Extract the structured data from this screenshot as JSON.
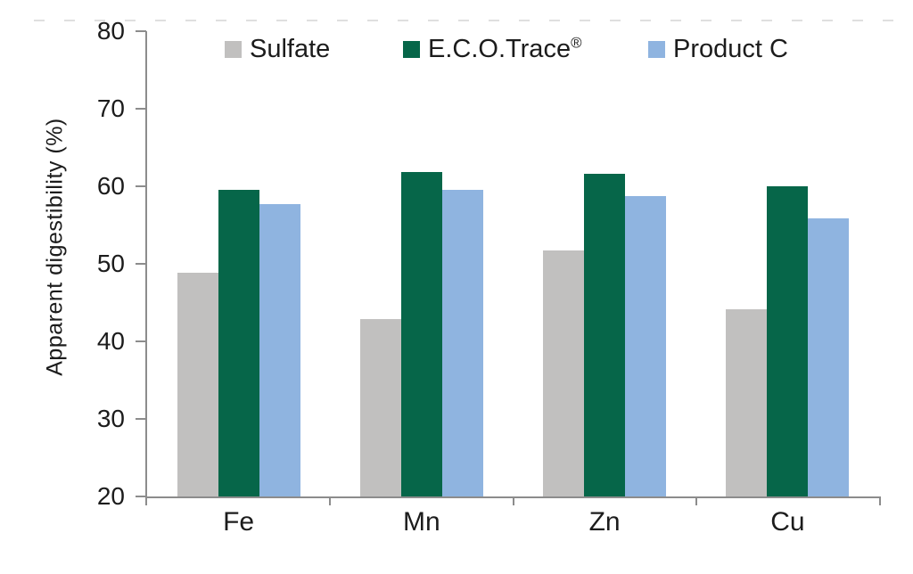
{
  "chart_data": {
    "type": "bar",
    "title": "",
    "xlabel": "",
    "ylabel": "Apparent digestibility (%)",
    "ylim": [
      20,
      80
    ],
    "yticks": [
      20,
      30,
      40,
      50,
      60,
      70,
      80
    ],
    "grid": false,
    "legend_position": "top",
    "categories": [
      "Fe",
      "Mn",
      "Zn",
      "Cu"
    ],
    "series": [
      {
        "name": "Sulfate",
        "color": "#c1c0bf",
        "values": [
          48.8,
          42.9,
          51.7,
          44.2
        ]
      },
      {
        "name": "E.C.O.Trace®",
        "color": "#066649",
        "values": [
          59.5,
          61.8,
          61.6,
          60.0
        ]
      },
      {
        "name": "Product C",
        "color": "#8fb4e0",
        "values": [
          57.7,
          59.6,
          58.7,
          55.9
        ]
      }
    ]
  },
  "colors": {
    "axis": "#8c8c8c",
    "text": "#1c1c1c",
    "background": "#ffffff"
  }
}
